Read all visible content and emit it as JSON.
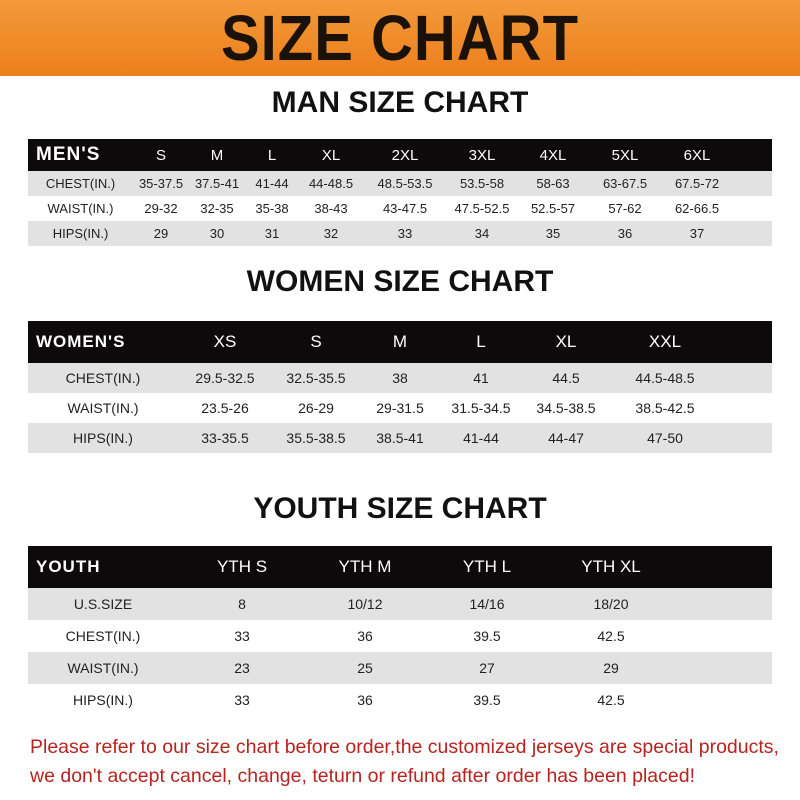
{
  "banner": {
    "title": "SIZE CHART",
    "color": "#ec7f1c"
  },
  "men": {
    "title": "MAN SIZE CHART",
    "header": [
      "MEN'S",
      "S",
      "M",
      "L",
      "XL",
      "2XL",
      "3XL",
      "4XL",
      "5XL",
      "6XL"
    ],
    "rows": [
      [
        "CHEST(IN.)",
        "35-37.5",
        "37.5-41",
        "41-44",
        "44-48.5",
        "48.5-53.5",
        "53.5-58",
        "58-63",
        "63-67.5",
        "67.5-72"
      ],
      [
        "WAIST(IN.)",
        "29-32",
        "32-35",
        "35-38",
        "38-43",
        "43-47.5",
        "47.5-52.5",
        "52.5-57",
        "57-62",
        "62-66.5"
      ],
      [
        "HIPS(IN.)",
        "29",
        "30",
        "31",
        "32",
        "33",
        "34",
        "35",
        "36",
        "37"
      ]
    ]
  },
  "women": {
    "title": "WOMEN SIZE CHART",
    "header": [
      "WOMEN'S",
      "XS",
      "S",
      "M",
      "L",
      "XL",
      "XXL"
    ],
    "rows": [
      [
        "CHEST(IN.)",
        "29.5-32.5",
        "32.5-35.5",
        "38",
        "41",
        "44.5",
        "44.5-48.5"
      ],
      [
        "WAIST(IN.)",
        "23.5-26",
        "26-29",
        "29-31.5",
        "31.5-34.5",
        "34.5-38.5",
        "38.5-42.5"
      ],
      [
        "HIPS(IN.)",
        "33-35.5",
        "35.5-38.5",
        "38.5-41",
        "41-44",
        "44-47",
        "47-50"
      ]
    ]
  },
  "youth": {
    "title": "YOUTH SIZE CHART",
    "header": [
      "YOUTH",
      "YTH S",
      "YTH M",
      "YTH L",
      "YTH XL"
    ],
    "rows": [
      [
        "U.S.SIZE",
        "8",
        "10/12",
        "14/16",
        "18/20"
      ],
      [
        "CHEST(IN.)",
        "33",
        "36",
        "39.5",
        "42.5"
      ],
      [
        "WAIST(IN.)",
        "23",
        "25",
        "27",
        "29"
      ],
      [
        "HIPS(IN.)",
        "33",
        "36",
        "39.5",
        "42.5"
      ]
    ]
  },
  "note": {
    "line1": "Please refer to our size chart before order,the customized jerseys are special products,",
    "line2": "we don't accept cancel, change, teturn or refund after order has been placed!",
    "color": "#b8231f"
  }
}
